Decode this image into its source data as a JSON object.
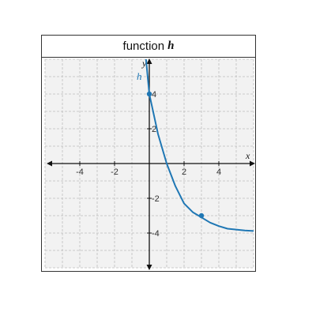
{
  "chart_data": {
    "type": "line",
    "title_prefix": "function",
    "title_var": "h",
    "xlabel": "x",
    "ylabel": "y",
    "curve_label": "h",
    "xlim": [
      -6,
      6
    ],
    "ylim": [
      -6,
      6
    ],
    "grid": true,
    "x_ticks": [
      -4,
      -2,
      2,
      4
    ],
    "y_ticks": [
      4,
      2,
      -2,
      -4
    ],
    "series": [
      {
        "color": "#1f77b4",
        "x": [
          -0.2,
          0,
          0.5,
          1,
          1.5,
          2,
          2.5,
          3,
          3.5,
          4,
          4.5,
          5,
          5.5,
          6
        ],
        "y": [
          6.1,
          4,
          1.7,
          0,
          -1.3,
          -2.3,
          -2.8,
          -3.1,
          -3.4,
          -3.6,
          -3.75,
          -3.8,
          -3.85,
          -3.88
        ]
      }
    ],
    "points": [
      {
        "x": 0,
        "y": 4
      },
      {
        "x": 3,
        "y": -3
      }
    ]
  }
}
